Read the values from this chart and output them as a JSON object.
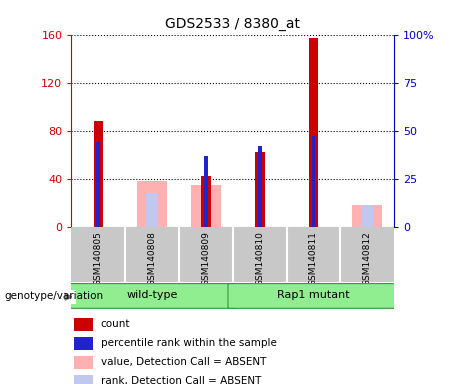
{
  "title": "GDS2533 / 8380_at",
  "samples": [
    "GSM140805",
    "GSM140808",
    "GSM140809",
    "GSM140810",
    "GSM140811",
    "GSM140812"
  ],
  "count_values": [
    88,
    null,
    42,
    62,
    157,
    null
  ],
  "percentile_values": [
    44,
    null,
    37,
    42,
    47,
    null
  ],
  "absent_value_values": [
    null,
    38,
    35,
    null,
    null,
    18
  ],
  "absent_rank_values": [
    null,
    28,
    null,
    null,
    null,
    18
  ],
  "ylim_left": [
    0,
    160
  ],
  "ylim_right": [
    0,
    100
  ],
  "yticks_left": [
    0,
    40,
    80,
    120,
    160
  ],
  "yticks_right": [
    0,
    25,
    50,
    75,
    100
  ],
  "ytick_labels_left": [
    "0",
    "40",
    "80",
    "120",
    "160"
  ],
  "ytick_labels_right": [
    "0",
    "25",
    "50",
    "75",
    "100%"
  ],
  "legend_items": [
    {
      "label": "count",
      "color": "#cc0000"
    },
    {
      "label": "percentile rank within the sample",
      "color": "#2222cc"
    },
    {
      "label": "value, Detection Call = ABSENT",
      "color": "#ffb0b0"
    },
    {
      "label": "rank, Detection Call = ABSENT",
      "color": "#c0c8f0"
    }
  ],
  "count_color": "#cc0000",
  "percentile_color": "#2222cc",
  "absent_value_color": "#ffb0b0",
  "absent_rank_color": "#c0c8f0",
  "wt_color": "#90ee90",
  "mut_color": "#90ee90",
  "group_edge_color": "#339933"
}
